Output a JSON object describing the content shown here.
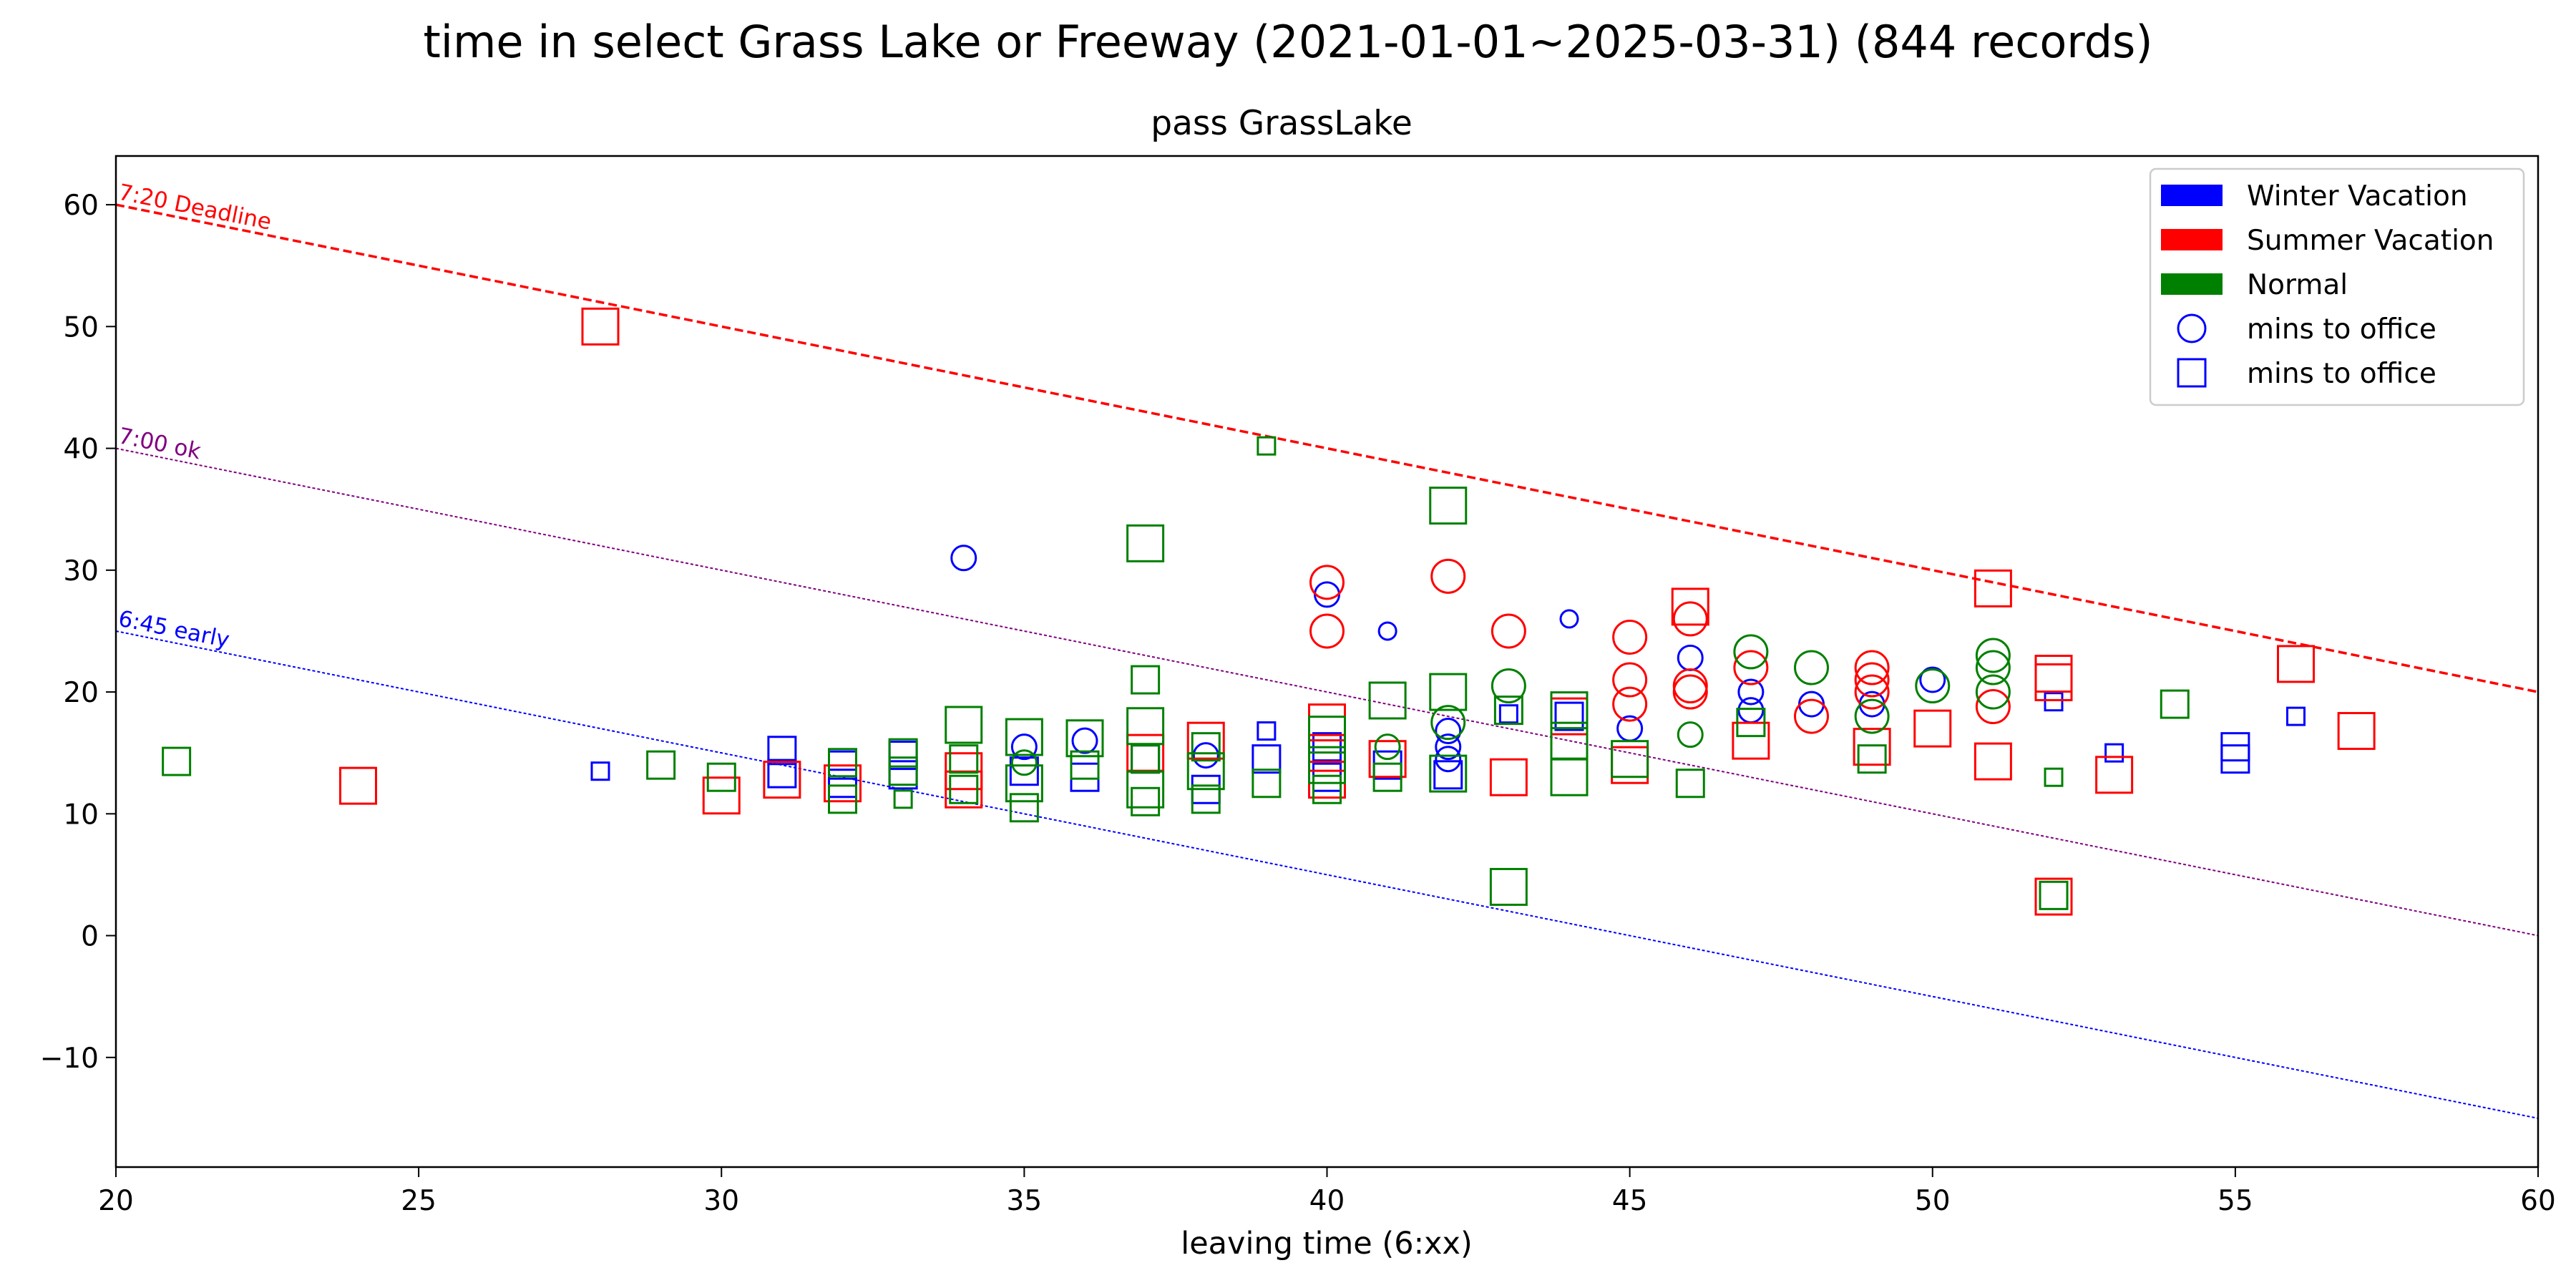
{
  "chart_data": {
    "type": "scatter",
    "suptitle": "time in select Grass Lake or Freeway (2021-01-01~2025-03-31) (844 records)",
    "title": "pass GrassLake",
    "xlabel": "leaving time (6:xx)",
    "ylabel": "",
    "xlim": [
      20,
      60
    ],
    "ylim": [
      -19,
      64
    ],
    "xticks": [
      20,
      25,
      30,
      35,
      40,
      45,
      50,
      55,
      60
    ],
    "yticks": [
      -10,
      0,
      10,
      20,
      30,
      40,
      50,
      60
    ],
    "grid": false,
    "legend_position": "top-right",
    "legend": [
      {
        "label": "Winter Vacation",
        "kind": "patch",
        "color": "#0000ff"
      },
      {
        "label": "Summer Vacation",
        "kind": "patch",
        "color": "#ff0000"
      },
      {
        "label": "Normal",
        "kind": "patch",
        "color": "#008000"
      },
      {
        "label": "mins to office",
        "kind": "circle",
        "color": "#0000ff"
      },
      {
        "label": "mins to office",
        "kind": "square",
        "color": "#0000ff"
      }
    ],
    "reference_lines": [
      {
        "label": "7:20 Deadline",
        "x": [
          20,
          60
        ],
        "y": [
          60,
          20
        ],
        "color": "#ff0000",
        "style": "dashed"
      },
      {
        "label": "7:00 ok",
        "x": [
          20,
          60
        ],
        "y": [
          40,
          0
        ],
        "color": "#800080",
        "style": "dotted"
      },
      {
        "label": "6:45 early",
        "x": [
          20,
          60
        ],
        "y": [
          25,
          -15
        ],
        "color": "#0000ff",
        "style": "dotted"
      }
    ],
    "series": [
      {
        "name": "Winter Vacation",
        "color": "#0000ff",
        "points": [
          {
            "x": 28,
            "y": 13.5,
            "marker": "square",
            "size": 1
          },
          {
            "x": 31,
            "y": 15.2,
            "marker": "square",
            "size": 2
          },
          {
            "x": 31,
            "y": 13.3,
            "marker": "square",
            "size": 2
          },
          {
            "x": 32,
            "y": 14,
            "marker": "square",
            "size": 2
          },
          {
            "x": 32,
            "y": 12.5,
            "marker": "square",
            "size": 2
          },
          {
            "x": 33,
            "y": 14.8,
            "marker": "square",
            "size": 2
          },
          {
            "x": 33,
            "y": 13.2,
            "marker": "square",
            "size": 2
          },
          {
            "x": 34,
            "y": 31,
            "marker": "circle",
            "size": 2
          },
          {
            "x": 35,
            "y": 15.5,
            "marker": "circle",
            "size": 2
          },
          {
            "x": 35,
            "y": 13.5,
            "marker": "square",
            "size": 2
          },
          {
            "x": 36,
            "y": 16,
            "marker": "circle",
            "size": 2
          },
          {
            "x": 36,
            "y": 13,
            "marker": "square",
            "size": 2
          },
          {
            "x": 37,
            "y": 14.5,
            "marker": "square",
            "size": 2
          },
          {
            "x": 38,
            "y": 14.8,
            "marker": "circle",
            "size": 2
          },
          {
            "x": 38,
            "y": 12,
            "marker": "square",
            "size": 2
          },
          {
            "x": 39,
            "y": 16.8,
            "marker": "square",
            "size": 1
          },
          {
            "x": 39,
            "y": 14.5,
            "marker": "square",
            "size": 2
          },
          {
            "x": 40,
            "y": 28,
            "marker": "circle",
            "size": 2
          },
          {
            "x": 40,
            "y": 15.5,
            "marker": "square",
            "size": 2
          },
          {
            "x": 40,
            "y": 13,
            "marker": "square",
            "size": 2
          },
          {
            "x": 41,
            "y": 25,
            "marker": "circle",
            "size": 1
          },
          {
            "x": 41,
            "y": 14,
            "marker": "square",
            "size": 2
          },
          {
            "x": 42,
            "y": 16.8,
            "marker": "circle",
            "size": 2
          },
          {
            "x": 42,
            "y": 15.5,
            "marker": "circle",
            "size": 2
          },
          {
            "x": 42,
            "y": 14.5,
            "marker": "circle",
            "size": 2
          },
          {
            "x": 42,
            "y": 13.2,
            "marker": "square",
            "size": 2
          },
          {
            "x": 43,
            "y": 18.2,
            "marker": "square",
            "size": 1
          },
          {
            "x": 44,
            "y": 26,
            "marker": "circle",
            "size": 1
          },
          {
            "x": 44,
            "y": 18,
            "marker": "square",
            "size": 2
          },
          {
            "x": 45,
            "y": 17,
            "marker": "circle",
            "size": 2
          },
          {
            "x": 46,
            "y": 22.8,
            "marker": "circle",
            "size": 2
          },
          {
            "x": 47,
            "y": 20,
            "marker": "circle",
            "size": 2
          },
          {
            "x": 47,
            "y": 18.5,
            "marker": "circle",
            "size": 2
          },
          {
            "x": 48,
            "y": 19,
            "marker": "circle",
            "size": 2
          },
          {
            "x": 49,
            "y": 19,
            "marker": "circle",
            "size": 2
          },
          {
            "x": 50,
            "y": 21,
            "marker": "circle",
            "size": 2
          },
          {
            "x": 52,
            "y": 19.2,
            "marker": "square",
            "size": 1
          },
          {
            "x": 53,
            "y": 15,
            "marker": "square",
            "size": 1
          },
          {
            "x": 55,
            "y": 15.5,
            "marker": "square",
            "size": 2
          },
          {
            "x": 55,
            "y": 14.5,
            "marker": "square",
            "size": 2
          },
          {
            "x": 56,
            "y": 18,
            "marker": "square",
            "size": 1
          }
        ]
      },
      {
        "name": "Summer Vacation",
        "color": "#ff0000",
        "points": [
          {
            "x": 24,
            "y": 12.3,
            "marker": "square",
            "size": 3
          },
          {
            "x": 28,
            "y": 50,
            "marker": "square",
            "size": 3
          },
          {
            "x": 30,
            "y": 11.5,
            "marker": "square",
            "size": 3
          },
          {
            "x": 31,
            "y": 12.8,
            "marker": "square",
            "size": 3
          },
          {
            "x": 32,
            "y": 12.5,
            "marker": "square",
            "size": 3
          },
          {
            "x": 34,
            "y": 13.5,
            "marker": "square",
            "size": 3
          },
          {
            "x": 34,
            "y": 12,
            "marker": "square",
            "size": 3
          },
          {
            "x": 37,
            "y": 15,
            "marker": "square",
            "size": 3
          },
          {
            "x": 38,
            "y": 16,
            "marker": "square",
            "size": 3
          },
          {
            "x": 40,
            "y": 29,
            "marker": "circle",
            "size": 3
          },
          {
            "x": 40,
            "y": 25,
            "marker": "circle",
            "size": 3
          },
          {
            "x": 40,
            "y": 17.5,
            "marker": "square",
            "size": 3
          },
          {
            "x": 40,
            "y": 15,
            "marker": "square",
            "size": 3
          },
          {
            "x": 40,
            "y": 12.8,
            "marker": "square",
            "size": 3
          },
          {
            "x": 41,
            "y": 14.5,
            "marker": "square",
            "size": 3
          },
          {
            "x": 42,
            "y": 29.5,
            "marker": "circle",
            "size": 3
          },
          {
            "x": 43,
            "y": 25,
            "marker": "circle",
            "size": 3
          },
          {
            "x": 43,
            "y": 13,
            "marker": "square",
            "size": 3
          },
          {
            "x": 44,
            "y": 18,
            "marker": "square",
            "size": 3
          },
          {
            "x": 45,
            "y": 24.5,
            "marker": "circle",
            "size": 3
          },
          {
            "x": 45,
            "y": 21,
            "marker": "circle",
            "size": 3
          },
          {
            "x": 45,
            "y": 19,
            "marker": "circle",
            "size": 3
          },
          {
            "x": 45,
            "y": 14,
            "marker": "square",
            "size": 3
          },
          {
            "x": 46,
            "y": 27,
            "marker": "square",
            "size": 3
          },
          {
            "x": 46,
            "y": 26,
            "marker": "circle",
            "size": 3
          },
          {
            "x": 46,
            "y": 20.5,
            "marker": "circle",
            "size": 3
          },
          {
            "x": 46,
            "y": 20,
            "marker": "circle",
            "size": 3
          },
          {
            "x": 47,
            "y": 22,
            "marker": "circle",
            "size": 3
          },
          {
            "x": 47,
            "y": 16,
            "marker": "square",
            "size": 3
          },
          {
            "x": 48,
            "y": 18,
            "marker": "circle",
            "size": 3
          },
          {
            "x": 49,
            "y": 22,
            "marker": "circle",
            "size": 3
          },
          {
            "x": 49,
            "y": 21,
            "marker": "circle",
            "size": 3
          },
          {
            "x": 49,
            "y": 20,
            "marker": "circle",
            "size": 3
          },
          {
            "x": 49,
            "y": 15.5,
            "marker": "square",
            "size": 3
          },
          {
            "x": 50,
            "y": 17,
            "marker": "square",
            "size": 3
          },
          {
            "x": 51,
            "y": 28.5,
            "marker": "square",
            "size": 3
          },
          {
            "x": 51,
            "y": 18.8,
            "marker": "circle",
            "size": 3
          },
          {
            "x": 51,
            "y": 14.3,
            "marker": "square",
            "size": 3
          },
          {
            "x": 52,
            "y": 21.5,
            "marker": "square",
            "size": 3
          },
          {
            "x": 52,
            "y": 20.8,
            "marker": "square",
            "size": 3
          },
          {
            "x": 52,
            "y": 3.2,
            "marker": "square",
            "size": 3
          },
          {
            "x": 53,
            "y": 13.2,
            "marker": "square",
            "size": 3
          },
          {
            "x": 56,
            "y": 22.3,
            "marker": "square",
            "size": 3
          },
          {
            "x": 57,
            "y": 16.8,
            "marker": "square",
            "size": 3
          }
        ]
      },
      {
        "name": "Normal",
        "color": "#008000",
        "points": [
          {
            "x": 21,
            "y": 14.3,
            "marker": "square",
            "size": 2
          },
          {
            "x": 29,
            "y": 14,
            "marker": "square",
            "size": 2
          },
          {
            "x": 30,
            "y": 13,
            "marker": "square",
            "size": 2
          },
          {
            "x": 32,
            "y": 14.2,
            "marker": "square",
            "size": 2
          },
          {
            "x": 32,
            "y": 11.2,
            "marker": "square",
            "size": 2
          },
          {
            "x": 33,
            "y": 15,
            "marker": "square",
            "size": 2
          },
          {
            "x": 33,
            "y": 13.5,
            "marker": "square",
            "size": 2
          },
          {
            "x": 33,
            "y": 11.2,
            "marker": "square",
            "size": 1
          },
          {
            "x": 34,
            "y": 17.3,
            "marker": "square",
            "size": 3
          },
          {
            "x": 34,
            "y": 14.5,
            "marker": "square",
            "size": 2
          },
          {
            "x": 34,
            "y": 12,
            "marker": "square",
            "size": 2
          },
          {
            "x": 35,
            "y": 16.3,
            "marker": "square",
            "size": 3
          },
          {
            "x": 35,
            "y": 14.2,
            "marker": "circle",
            "size": 2
          },
          {
            "x": 35,
            "y": 12.5,
            "marker": "square",
            "size": 3
          },
          {
            "x": 35,
            "y": 10.5,
            "marker": "square",
            "size": 2
          },
          {
            "x": 36,
            "y": 16.2,
            "marker": "square",
            "size": 3
          },
          {
            "x": 36,
            "y": 14,
            "marker": "square",
            "size": 2
          },
          {
            "x": 37,
            "y": 32.2,
            "marker": "square",
            "size": 3
          },
          {
            "x": 37,
            "y": 21,
            "marker": "square",
            "size": 2
          },
          {
            "x": 37,
            "y": 17.2,
            "marker": "square",
            "size": 3
          },
          {
            "x": 37,
            "y": 14.5,
            "marker": "square",
            "size": 2
          },
          {
            "x": 37,
            "y": 12,
            "marker": "square",
            "size": 3
          },
          {
            "x": 37,
            "y": 11,
            "marker": "square",
            "size": 2
          },
          {
            "x": 38,
            "y": 15.5,
            "marker": "square",
            "size": 2
          },
          {
            "x": 38,
            "y": 13.5,
            "marker": "square",
            "size": 3
          },
          {
            "x": 38,
            "y": 11.2,
            "marker": "square",
            "size": 2
          },
          {
            "x": 39,
            "y": 40.2,
            "marker": "square",
            "size": 1
          },
          {
            "x": 39,
            "y": 12.5,
            "marker": "square",
            "size": 2
          },
          {
            "x": 40,
            "y": 16.5,
            "marker": "square",
            "size": 3
          },
          {
            "x": 40,
            "y": 14,
            "marker": "square",
            "size": 3
          },
          {
            "x": 40,
            "y": 12,
            "marker": "square",
            "size": 2
          },
          {
            "x": 41,
            "y": 19.3,
            "marker": "square",
            "size": 3
          },
          {
            "x": 41,
            "y": 15.5,
            "marker": "circle",
            "size": 2
          },
          {
            "x": 41,
            "y": 13,
            "marker": "square",
            "size": 2
          },
          {
            "x": 42,
            "y": 35.3,
            "marker": "square",
            "size": 3
          },
          {
            "x": 42,
            "y": 20,
            "marker": "square",
            "size": 3
          },
          {
            "x": 42,
            "y": 17.5,
            "marker": "circle",
            "size": 3
          },
          {
            "x": 42,
            "y": 13.3,
            "marker": "square",
            "size": 3
          },
          {
            "x": 43,
            "y": 20.5,
            "marker": "circle",
            "size": 3
          },
          {
            "x": 43,
            "y": 18.5,
            "marker": "square",
            "size": 2
          },
          {
            "x": 43,
            "y": 4,
            "marker": "square",
            "size": 3
          },
          {
            "x": 44,
            "y": 18.5,
            "marker": "square",
            "size": 3
          },
          {
            "x": 44,
            "y": 16,
            "marker": "square",
            "size": 3
          },
          {
            "x": 44,
            "y": 13,
            "marker": "square",
            "size": 3
          },
          {
            "x": 45,
            "y": 14.5,
            "marker": "square",
            "size": 3
          },
          {
            "x": 46,
            "y": 16.5,
            "marker": "circle",
            "size": 2
          },
          {
            "x": 46,
            "y": 12.5,
            "marker": "square",
            "size": 2
          },
          {
            "x": 47,
            "y": 23.3,
            "marker": "circle",
            "size": 3
          },
          {
            "x": 47,
            "y": 17.5,
            "marker": "square",
            "size": 2
          },
          {
            "x": 48,
            "y": 22,
            "marker": "circle",
            "size": 3
          },
          {
            "x": 49,
            "y": 18,
            "marker": "circle",
            "size": 3
          },
          {
            "x": 49,
            "y": 14.5,
            "marker": "square",
            "size": 2
          },
          {
            "x": 50,
            "y": 20.5,
            "marker": "circle",
            "size": 3
          },
          {
            "x": 51,
            "y": 23,
            "marker": "circle",
            "size": 3
          },
          {
            "x": 51,
            "y": 22,
            "marker": "circle",
            "size": 3
          },
          {
            "x": 51,
            "y": 20,
            "marker": "circle",
            "size": 3
          },
          {
            "x": 52,
            "y": 13,
            "marker": "square",
            "size": 1
          },
          {
            "x": 52,
            "y": 3.3,
            "marker": "square",
            "size": 2
          },
          {
            "x": 54,
            "y": 19,
            "marker": "square",
            "size": 2
          }
        ]
      }
    ]
  }
}
